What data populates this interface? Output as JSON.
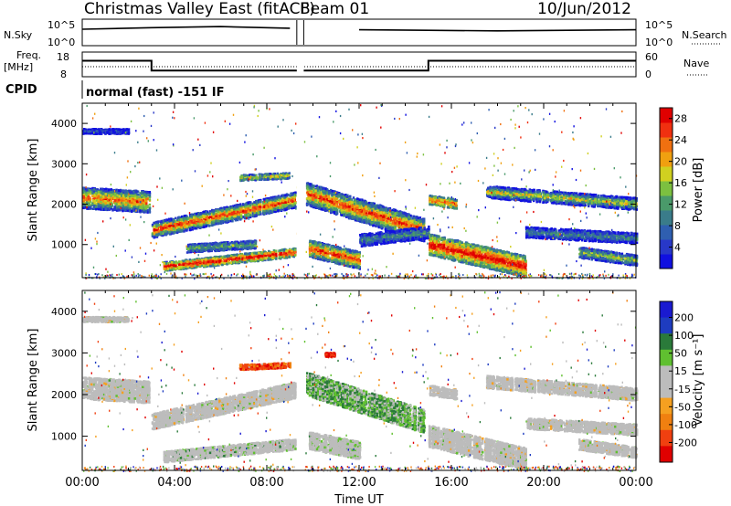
{
  "header": {
    "title": "Christmas Valley East (fitACF)",
    "beam": "Beam 01",
    "date": "10/Jun/2012"
  },
  "labels": {
    "nsky": "N.Sky",
    "nsearch": "N.Search",
    "freq_line1": "Freq.",
    "freq_line2": "[MHz]",
    "nave": "Nave",
    "cpid": "CPID",
    "cpid_text": "normal (fast) -151 IF"
  },
  "colors": {
    "power_scale": [
      "#1010e0",
      "#2838c8",
      "#2f5fb0",
      "#3a7c8a",
      "#4a9a6a",
      "#7cc040",
      "#d0d020",
      "#f0a010",
      "#f07010",
      "#f03010",
      "#e00000"
    ],
    "velocity_scale": [
      "#1a1ad0",
      "#1e3cc0",
      "#2a7a3a",
      "#60c030",
      "#bcbcbc",
      "#bcbcbc",
      "#f5a020",
      "#f08010",
      "#f04010",
      "#e00000"
    ],
    "ground_scatter": "#bcbcbc"
  },
  "chart_data": [
    {
      "type": "line",
      "panel": "noise",
      "y_left_label": "N.Sky",
      "y_right_label": "N.Search",
      "y_left_ticks": [
        "10^5",
        "10^0"
      ],
      "y_right_ticks": [
        "10^5",
        "10^0"
      ],
      "x": [
        "00:00",
        "03:00",
        "06:00",
        "09:00",
        "09:30",
        "12:00",
        "15:00",
        "18:00",
        "21:00",
        "24:00"
      ],
      "series": [
        {
          "values": [
            3.1,
            3.4,
            3.6,
            3.3,
            null,
            3.0,
            2.9,
            2.8,
            2.9,
            3.0
          ]
        }
      ]
    },
    {
      "type": "line",
      "panel": "frequency",
      "y_left_label": "Freq. [MHz]",
      "y_right_label": "Nave",
      "y_left_ticks": [
        18,
        8
      ],
      "y_right_ticks": [
        60,
        0
      ],
      "x": [
        "00:00",
        "03:00",
        "03:00",
        "09:15",
        "09:45",
        "15:00",
        "15:00",
        "24:00"
      ],
      "series": [
        {
          "values": [
            14.5,
            14.5,
            10.5,
            10.5,
            10.5,
            10.5,
            14.5,
            14.5
          ]
        }
      ]
    },
    {
      "type": "heatmap",
      "panel": "power",
      "ylabel": "Slant Range [km]",
      "xlabel": "Time UT",
      "xlim_hours": [
        0,
        24
      ],
      "ylim": [
        180,
        4500
      ],
      "yticks": [
        1000,
        2000,
        3000,
        4000
      ],
      "xticks": [
        "00:00",
        "04:00",
        "08:00",
        "12:00",
        "16:00",
        "20:00",
        "00:00"
      ],
      "colorbar_label": "Power [dB]",
      "colorbar_ticks": [
        4,
        8,
        12,
        16,
        20,
        24,
        28
      ],
      "colorbar_range": [
        0,
        30
      ]
    },
    {
      "type": "heatmap",
      "panel": "velocity",
      "ylabel": "Slant Range [km]",
      "xlabel": "Time UT",
      "xlim_hours": [
        0,
        24
      ],
      "ylim": [
        180,
        4500
      ],
      "yticks": [
        1000,
        2000,
        3000,
        4000
      ],
      "xticks": [
        "00:00",
        "04:00",
        "08:00",
        "12:00",
        "16:00",
        "20:00",
        "00:00"
      ],
      "colorbar_label": "Velocity [m s⁻¹]",
      "colorbar_ticks": [
        200,
        100,
        50,
        15,
        -15,
        -50,
        -100,
        -200
      ],
      "colorbar_range": [
        -250,
        250
      ]
    }
  ]
}
